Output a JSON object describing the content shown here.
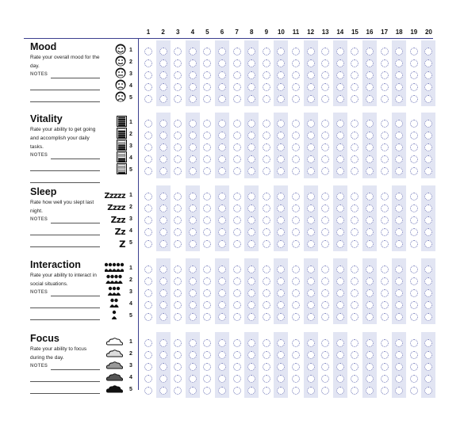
{
  "days": [
    "1",
    "2",
    "3",
    "4",
    "5",
    "6",
    "7",
    "8",
    "9",
    "10",
    "11",
    "12",
    "13",
    "14",
    "15",
    "16",
    "17",
    "18",
    "19",
    "20"
  ],
  "ratings": [
    "1",
    "2",
    "3",
    "4",
    "5"
  ],
  "notes_label": "NOTES",
  "sections": [
    {
      "title": "Mood",
      "description": "Rate your overall mood for the day.",
      "icons": [
        "happy-face-icon",
        "content-face-icon",
        "neutral-face-icon",
        "unhappy-face-icon",
        "sad-face-icon"
      ]
    },
    {
      "title": "Vitality",
      "description": "Rate your ability to get going and accomplish your daily tasks.",
      "icons": [
        "battery-full-icon",
        "battery-high-icon",
        "battery-medium-icon",
        "battery-low-icon",
        "battery-empty-icon"
      ]
    },
    {
      "title": "Sleep",
      "description": "Rate how well you slept last night.",
      "z_labels": [
        "Zzzzz",
        "Zzzz",
        "Zzz",
        "Zz",
        "Z"
      ]
    },
    {
      "title": "Interaction",
      "description": "Rate your ability to interact in social situations.",
      "icons": [
        "crowd-icon",
        "group-icon",
        "trio-icon",
        "pair-icon",
        "single-person-icon"
      ]
    },
    {
      "title": "Focus",
      "description": "Rate your ability to focus during the day.",
      "icons": [
        "clear-sky-icon",
        "light-clouds-icon",
        "partly-cloudy-icon",
        "cloudy-icon",
        "dark-clouds-icon"
      ]
    }
  ]
}
